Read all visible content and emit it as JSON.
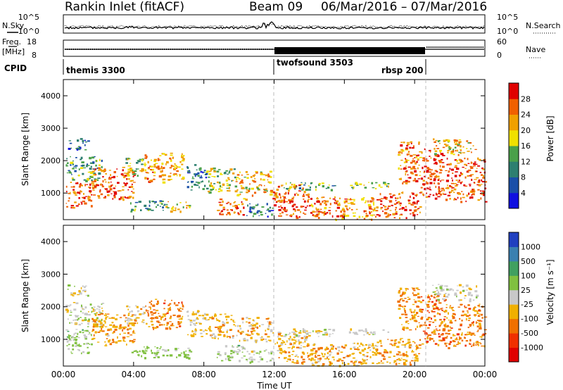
{
  "header": {
    "station": "Rankin Inlet (fitACF)",
    "beam": "Beam 09",
    "date_range": "06/Mar/2016 – 07/Mar/2016"
  },
  "labels": {
    "n_sky": "N.Sky",
    "n_search": "N.Search",
    "freq_top": "Freq.",
    "freq_unit": "[MHz]",
    "cpid": "CPID",
    "nave": "Nave",
    "time_axis": "Time UT",
    "range_axis": "Slant Range [km]",
    "power_colorbar": "Power [dB]",
    "velocity_colorbar": "Velocity  [m s⁻¹]"
  },
  "noise_axis": {
    "left_ticks": [
      "10^5",
      "10^0"
    ],
    "right_ticks": [
      "10^5",
      "10^0"
    ]
  },
  "freq_axis": {
    "left_ticks": [
      "18",
      "8"
    ],
    "right_ticks": [
      "60",
      "0"
    ]
  },
  "cpid_segments": [
    {
      "label": "themis 3300",
      "start_hour": 0
    },
    {
      "label": "twofsound 3503",
      "start_hour": 12
    },
    {
      "label": "rbsp 200",
      "start_hour": 20.5
    }
  ],
  "x_ticks": [
    "00:00",
    "04:00",
    "08:00",
    "12:00",
    "16:00",
    "20:00",
    "00:00"
  ],
  "y_ticks": [
    "1000",
    "2000",
    "3000",
    "4000"
  ],
  "power_ticks": [
    "28",
    "24",
    "20",
    "16",
    "12",
    "8",
    "4"
  ],
  "velocity_ticks": [
    "1000",
    "500",
    "100",
    "25",
    "-25",
    "-100",
    "-500",
    "-1000"
  ],
  "colors": {
    "power": [
      "#1010e0",
      "#1a4fa8",
      "#2d7f70",
      "#4aa04a",
      "#f0e000",
      "#f0a000",
      "#f06000",
      "#e00000"
    ],
    "velocity": [
      "#2040c0",
      "#3a80b0",
      "#40a060",
      "#80c040",
      "#c8c8c8",
      "#f0b000",
      "#f07000",
      "#f03000",
      "#e00000"
    ]
  },
  "chart_data": {
    "type": "heatmap",
    "x_range_hours": [
      0,
      24
    ],
    "y_range_km": [
      180,
      4500
    ],
    "panels": [
      {
        "name": "power",
        "unit": "dB",
        "color_range": [
          0,
          30
        ],
        "regions": [
          {
            "t0": 0.1,
            "t1": 1.6,
            "r0": 560,
            "r1": 1350,
            "value": 26
          },
          {
            "t0": 0.1,
            "t1": 2.2,
            "r0": 1400,
            "r1": 2150,
            "value": 12
          },
          {
            "t0": 0.2,
            "t1": 1.4,
            "r0": 2350,
            "r1": 2700,
            "value": 8
          },
          {
            "t0": 1.6,
            "t1": 4.0,
            "r0": 820,
            "r1": 1820,
            "value": 25
          },
          {
            "t0": 3.5,
            "t1": 4.6,
            "r0": 1500,
            "r1": 2100,
            "value": 15
          },
          {
            "t0": 4.6,
            "t1": 6.8,
            "r0": 1350,
            "r1": 2250,
            "value": 21
          },
          {
            "t0": 3.8,
            "t1": 5.8,
            "r0": 450,
            "r1": 800,
            "value": 11
          },
          {
            "t0": 5.8,
            "t1": 7.2,
            "r0": 450,
            "r1": 750,
            "value": 18
          },
          {
            "t0": 7.0,
            "t1": 8.1,
            "r0": 1100,
            "r1": 1900,
            "value": 8
          },
          {
            "t0": 8.1,
            "t1": 9.8,
            "r0": 1050,
            "r1": 1800,
            "value": 16
          },
          {
            "t0": 9.8,
            "t1": 11.8,
            "r0": 950,
            "r1": 1700,
            "value": 20
          },
          {
            "t0": 8.7,
            "t1": 10.4,
            "r0": 350,
            "r1": 850,
            "value": 24
          },
          {
            "t0": 10.4,
            "t1": 11.9,
            "r0": 300,
            "r1": 700,
            "value": 9
          },
          {
            "t0": 11.9,
            "t1": 14.0,
            "r0": 650,
            "r1": 1300,
            "value": 25
          },
          {
            "t0": 12.2,
            "t1": 14.5,
            "r0": 260,
            "r1": 650,
            "value": 27
          },
          {
            "t0": 14.0,
            "t1": 16.0,
            "r0": 200,
            "r1": 900,
            "value": 24
          },
          {
            "t0": 16.0,
            "t1": 17.8,
            "r0": 200,
            "r1": 900,
            "value": 21
          },
          {
            "t0": 17.8,
            "t1": 20.3,
            "r0": 250,
            "r1": 1050,
            "value": 25
          },
          {
            "t0": 12.5,
            "t1": 15.5,
            "r0": 1100,
            "r1": 1350,
            "value": 12
          },
          {
            "t0": 16.2,
            "t1": 18.5,
            "r0": 1150,
            "r1": 1350,
            "value": 14
          },
          {
            "t0": 19.0,
            "t1": 20.3,
            "r0": 1300,
            "r1": 2600,
            "value": 24
          },
          {
            "t0": 20.3,
            "t1": 21.7,
            "r0": 850,
            "r1": 2400,
            "value": 26
          },
          {
            "t0": 21.7,
            "t1": 24.0,
            "r0": 750,
            "r1": 2100,
            "value": 24
          },
          {
            "t0": 21.0,
            "t1": 23.5,
            "r0": 2200,
            "r1": 2700,
            "value": 18
          }
        ]
      },
      {
        "name": "velocity",
        "unit": "m s⁻¹",
        "color_range": [
          -1000,
          1000
        ],
        "regions": [
          {
            "t0": 0.1,
            "t1": 1.6,
            "r0": 560,
            "r1": 1350,
            "value": 150
          },
          {
            "t0": 0.1,
            "t1": 2.2,
            "r0": 1400,
            "r1": 2150,
            "value": 0
          },
          {
            "t0": 0.2,
            "t1": 1.4,
            "r0": 2350,
            "r1": 2700,
            "value": 5
          },
          {
            "t0": 1.6,
            "t1": 4.0,
            "r0": 820,
            "r1": 1820,
            "value": -300
          },
          {
            "t0": 3.5,
            "t1": 4.6,
            "r0": 1500,
            "r1": 2100,
            "value": -150
          },
          {
            "t0": 4.6,
            "t1": 6.8,
            "r0": 1350,
            "r1": 2250,
            "value": -400
          },
          {
            "t0": 3.8,
            "t1": 5.8,
            "r0": 450,
            "r1": 800,
            "value": 200
          },
          {
            "t0": 5.8,
            "t1": 7.2,
            "r0": 450,
            "r1": 750,
            "value": 120
          },
          {
            "t0": 7.0,
            "t1": 8.1,
            "r0": 1100,
            "r1": 1900,
            "value": -120
          },
          {
            "t0": 8.1,
            "t1": 9.8,
            "r0": 1050,
            "r1": 1800,
            "value": -250
          },
          {
            "t0": 9.8,
            "t1": 11.8,
            "r0": 950,
            "r1": 1700,
            "value": -200
          },
          {
            "t0": 8.7,
            "t1": 10.4,
            "r0": 350,
            "r1": 850,
            "value": 150
          },
          {
            "t0": 10.4,
            "t1": 11.9,
            "r0": 300,
            "r1": 700,
            "value": 60
          },
          {
            "t0": 11.9,
            "t1": 14.0,
            "r0": 650,
            "r1": 1300,
            "value": -200
          },
          {
            "t0": 12.2,
            "t1": 14.5,
            "r0": 260,
            "r1": 650,
            "value": -300
          },
          {
            "t0": 14.0,
            "t1": 16.0,
            "r0": 200,
            "r1": 900,
            "value": -250
          },
          {
            "t0": 16.0,
            "t1": 17.8,
            "r0": 200,
            "r1": 900,
            "value": -220
          },
          {
            "t0": 17.8,
            "t1": 20.3,
            "r0": 250,
            "r1": 1050,
            "value": -300
          },
          {
            "t0": 12.5,
            "t1": 15.5,
            "r0": 1100,
            "r1": 1350,
            "value": 0
          },
          {
            "t0": 16.2,
            "t1": 18.5,
            "r0": 1150,
            "r1": 1350,
            "value": 0
          },
          {
            "t0": 19.0,
            "t1": 20.3,
            "r0": 1300,
            "r1": 2600,
            "value": -350
          },
          {
            "t0": 20.3,
            "t1": 21.7,
            "r0": 850,
            "r1": 2400,
            "value": -450
          },
          {
            "t0": 21.7,
            "t1": 24.0,
            "r0": 750,
            "r1": 2100,
            "value": -400
          },
          {
            "t0": 21.0,
            "t1": 23.5,
            "r0": 2200,
            "r1": 2700,
            "value": 0
          }
        ]
      }
    ]
  }
}
